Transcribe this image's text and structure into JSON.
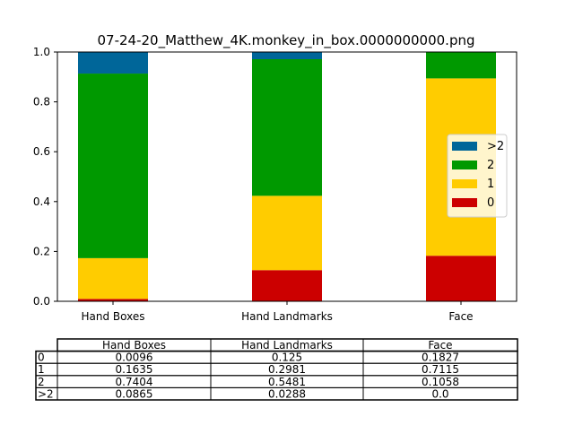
{
  "chart_data": {
    "type": "bar",
    "stacked": true,
    "title": "07-24-20_Matthew_4K.monkey_in_box.0000000000.png",
    "categories": [
      "Hand Boxes",
      "Hand Landmarks",
      "Face"
    ],
    "series": [
      {
        "name": "0",
        "color": "#cc0000",
        "values": [
          0.0096,
          0.125,
          0.1827
        ]
      },
      {
        "name": "1",
        "color": "#ffcc00",
        "values": [
          0.1635,
          0.2981,
          0.7115
        ]
      },
      {
        "name": "2",
        "color": "#009900",
        "values": [
          0.7404,
          0.5481,
          0.1058
        ]
      },
      {
        "name": ">2",
        "color": "#006699",
        "values": [
          0.0865,
          0.0288,
          0.0
        ]
      }
    ],
    "ylim": [
      0,
      1.0
    ],
    "yticks": [
      "0.0",
      "0.2",
      "0.4",
      "0.6",
      "0.8",
      "1.0"
    ],
    "legend_position": "right",
    "legend_order": [
      ">2",
      "2",
      "1",
      "0"
    ],
    "table": {
      "columns": [
        "Hand Boxes",
        "Hand Landmarks",
        "Face"
      ],
      "rows": [
        {
          "label": "0",
          "cells": [
            "0.0096",
            "0.125",
            "0.1827"
          ]
        },
        {
          "label": "1",
          "cells": [
            "0.1635",
            "0.2981",
            "0.7115"
          ]
        },
        {
          "label": "2",
          "cells": [
            "0.7404",
            "0.5481",
            "0.1058"
          ]
        },
        {
          "label": ">2",
          "cells": [
            "0.0865",
            "0.0288",
            "0.0"
          ]
        }
      ]
    }
  }
}
